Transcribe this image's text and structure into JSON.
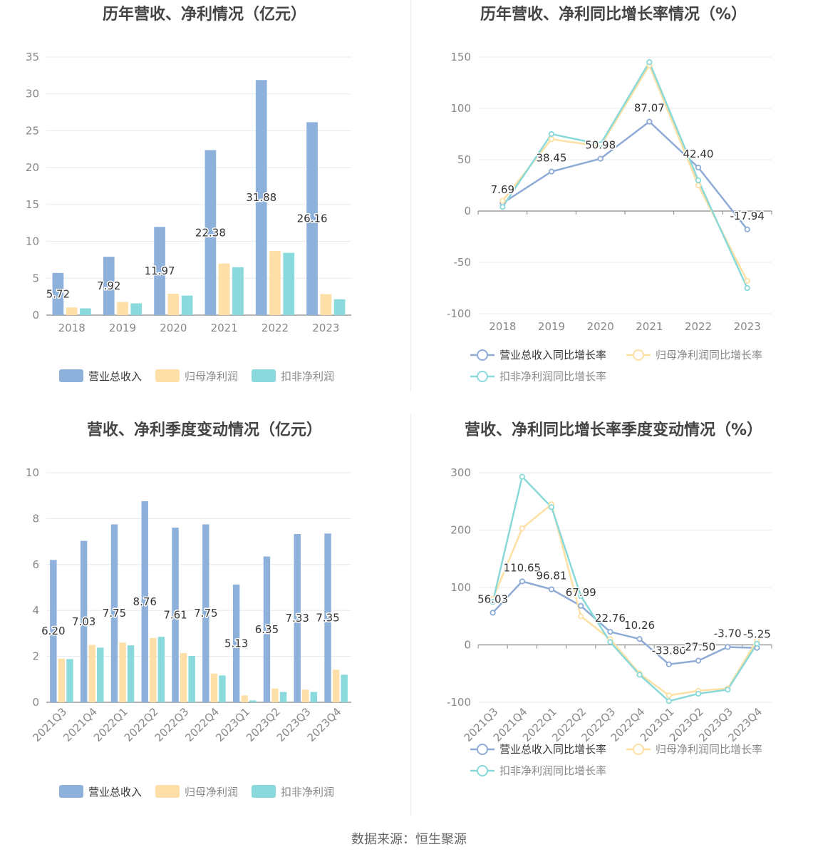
{
  "colors": {
    "revenue": "#8eb1dc",
    "net_profit": "#ffdfa8",
    "net_profit_deducted": "#8ad9dc",
    "revenue_line": "#8eabd6",
    "net_profit_line": "#ffe0a3",
    "net_profit_deducted_line": "#8ad9d9"
  },
  "footer": "数据来源：恒生聚源",
  "charts": [
    {
      "id": "annual-amount",
      "chart_data": {
        "type": "bar",
        "title": "历年营收、净利情况（亿元）",
        "categories": [
          "2018",
          "2019",
          "2020",
          "2021",
          "2022",
          "2023"
        ],
        "ylim": [
          0,
          35
        ],
        "yticks": [
          0,
          5,
          10,
          15,
          20,
          25,
          30,
          35
        ],
        "series": [
          {
            "name": "营业总收入",
            "values": [
              5.72,
              7.92,
              11.97,
              22.38,
              31.88,
              26.16
            ],
            "labeled": true
          },
          {
            "name": "归母净利润",
            "values": [
              1.05,
              1.78,
              2.9,
              7.0,
              8.7,
              2.85
            ]
          },
          {
            "name": "扣非净利润",
            "values": [
              0.92,
              1.6,
              2.65,
              6.5,
              8.45,
              2.15
            ]
          }
        ],
        "data_labels": [
          "5.72",
          "7.92",
          "11.97",
          "22.38",
          "31.88",
          "26.16"
        ],
        "grid": true,
        "legend": "bottom"
      }
    },
    {
      "id": "annual-growth",
      "chart_data": {
        "type": "line",
        "title": "历年营收、净利同比增长率情况（%）",
        "categories": [
          "2018",
          "2019",
          "2020",
          "2021",
          "2022",
          "2023"
        ],
        "ylim": [
          -100,
          150
        ],
        "yticks": [
          -100,
          -50,
          0,
          50,
          100,
          150
        ],
        "series": [
          {
            "name": "营业总收入同比增长率",
            "values": [
              7.69,
              38.45,
              50.98,
              87.07,
              42.4,
              -17.94
            ],
            "labeled": true
          },
          {
            "name": "归母净利润同比增长率",
            "values": [
              10,
              70,
              63,
              142,
              25,
              -68
            ]
          },
          {
            "name": "扣非净利润同比增长率",
            "values": [
              4,
              75,
              65,
              145,
              30,
              -75
            ]
          }
        ],
        "data_labels": [
          "7.69",
          "38.45",
          "50.98",
          "87.07",
          "42.40",
          "-17.94"
        ],
        "grid": true,
        "legend": "bottom"
      }
    },
    {
      "id": "quarterly-amount",
      "chart_data": {
        "type": "bar",
        "title": "营收、净利季度变动情况（亿元）",
        "categories": [
          "2021Q3",
          "2021Q4",
          "2022Q1",
          "2022Q2",
          "2022Q3",
          "2022Q4",
          "2023Q1",
          "2023Q2",
          "2023Q3",
          "2023Q4"
        ],
        "ylim": [
          0,
          10
        ],
        "yticks": [
          0,
          2,
          4,
          6,
          8,
          10
        ],
        "series": [
          {
            "name": "营业总收入",
            "values": [
              6.2,
              7.03,
              7.75,
              8.76,
              7.61,
              7.75,
              5.13,
              6.35,
              7.33,
              7.35
            ],
            "labeled": true
          },
          {
            "name": "归母净利润",
            "values": [
              1.9,
              2.5,
              2.6,
              2.8,
              2.15,
              1.25,
              0.3,
              0.6,
              0.55,
              1.42
            ]
          },
          {
            "name": "扣非净利润",
            "values": [
              1.88,
              2.38,
              2.48,
              2.85,
              2.02,
              1.17,
              0.08,
              0.45,
              0.45,
              1.2
            ]
          }
        ],
        "data_labels": [
          "6.20",
          "7.03",
          "7.75",
          "8.76",
          "7.61",
          "7.75",
          "5.13",
          "6.35",
          "7.33",
          "7.35"
        ],
        "grid": true,
        "legend": "bottom"
      }
    },
    {
      "id": "quarterly-growth",
      "chart_data": {
        "type": "line",
        "title": "营收、净利同比增长率季度变动情况（%）",
        "categories": [
          "2021Q3",
          "2021Q4",
          "2022Q1",
          "2022Q2",
          "2022Q3",
          "2022Q4",
          "2023Q1",
          "2023Q2",
          "2023Q3",
          "2023Q4"
        ],
        "ylim": [
          -100,
          300
        ],
        "yticks": [
          -100,
          0,
          100,
          200,
          300
        ],
        "series": [
          {
            "name": "营业总收入同比增长率",
            "values": [
              56.03,
              110.65,
              96.81,
              67.99,
              22.76,
              10.26,
              -33.8,
              -27.5,
              -3.7,
              -5.25
            ],
            "labeled": true
          },
          {
            "name": "归母净利润同比增长率",
            "values": [
              80,
              203,
              245,
              50,
              10,
              -50,
              -88,
              -80,
              -76,
              8
            ]
          },
          {
            "name": "扣非净利润同比增长率",
            "values": [
              75,
              293,
              240,
              85,
              5,
              -52,
              -98,
              -85,
              -78,
              2
            ]
          }
        ],
        "data_labels": [
          "56.03",
          "110.65",
          "96.81",
          "67.99",
          "22.76",
          "10.26",
          "-33.80",
          "-27.50",
          "-3.70",
          "-5.25"
        ],
        "grid": true,
        "legend": "bottom"
      }
    }
  ]
}
